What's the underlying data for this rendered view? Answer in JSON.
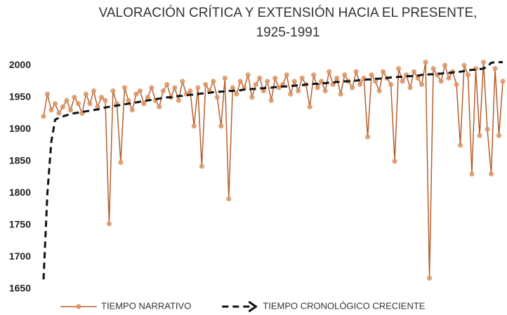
{
  "chart_data": {
    "type": "line",
    "title": [
      "VALORACIÓN CRÍTICA Y EXTENSIÓN HACIA EL PRESENTE,",
      "1925-1991"
    ],
    "categories": [
      null,
      null,
      null,
      null,
      null,
      null,
      null,
      null,
      null,
      null,
      null,
      null,
      null,
      null,
      null,
      null,
      null,
      null,
      null,
      null,
      null,
      null,
      null,
      null,
      null,
      null,
      null,
      null,
      null,
      null,
      null,
      null,
      null,
      null,
      null,
      null,
      null,
      null,
      null,
      null,
      null,
      null,
      null,
      null,
      null,
      null,
      null,
      null,
      null,
      null,
      null,
      null,
      null,
      null,
      null,
      null,
      null,
      null,
      null,
      null,
      null,
      null,
      null,
      null,
      null,
      null,
      null,
      null,
      null,
      null,
      null,
      null,
      null,
      null,
      null,
      null,
      null,
      null,
      null,
      null,
      null,
      null,
      null,
      null,
      null,
      null,
      null,
      null,
      null,
      null,
      null,
      null,
      null,
      null,
      null,
      null,
      null,
      null,
      null,
      null,
      null,
      null,
      null,
      null,
      null,
      null,
      null,
      null,
      null,
      null,
      null,
      null,
      null,
      null,
      null,
      null,
      null,
      null,
      null,
      null
    ],
    "series": [
      {
        "name": "TIEMPO NARRATIVO",
        "color": "#b5602e",
        "marker_color": "#dc9464",
        "style": "solid-marker",
        "values": [
          1920,
          1955,
          1930,
          1940,
          1925,
          1935,
          1945,
          1930,
          1950,
          1940,
          1925,
          1955,
          1940,
          1960,
          1935,
          1950,
          1945,
          1752,
          1960,
          1940,
          1848,
          1965,
          1945,
          1930,
          1955,
          1960,
          1940,
          1950,
          1965,
          1945,
          1935,
          1960,
          1970,
          1950,
          1965,
          1945,
          1975,
          1955,
          1960,
          1905,
          1965,
          1842,
          1970,
          1960,
          1975,
          1950,
          1905,
          1980,
          1791,
          1965,
          1955,
          1975,
          1965,
          1985,
          1950,
          1970,
          1980,
          1960,
          1975,
          1945,
          1980,
          1965,
          1970,
          1985,
          1955,
          1975,
          1960,
          1980,
          1970,
          1935,
          1985,
          1965,
          1975,
          1960,
          1990,
          1970,
          1980,
          1955,
          1985,
          1975,
          1965,
          1990,
          1970,
          1980,
          1888,
          1985,
          1975,
          1960,
          1990,
          1980,
          1970,
          1850,
          1995,
          1975,
          1985,
          1965,
          1990,
          1980,
          1970,
          2005,
          1667,
          1995,
          1985,
          1975,
          2000,
          1980,
          1990,
          1970,
          1875,
          2000,
          1985,
          1830,
          1995,
          1890,
          2005,
          1900,
          1830,
          1995,
          1890,
          1975
        ]
      },
      {
        "name": "TIEMPO CRONOLÓGICO CRECIENTE",
        "color": "#111111",
        "style": "dashed-arrow",
        "values": [
          1665,
          1800,
          1880,
          1915,
          1918,
          1920,
          1922,
          1924,
          1925,
          1926,
          1927,
          1928,
          1929,
          1930,
          1931,
          1932,
          1934,
          1935,
          1936,
          1937,
          1938,
          1939,
          1940,
          1941,
          1942,
          1943,
          1944,
          1945,
          1946,
          1947,
          1948,
          1949,
          1950,
          1950,
          1951,
          1952,
          1952,
          1953,
          1954,
          1954,
          1955,
          1956,
          1956,
          1957,
          1958,
          1958,
          1959,
          1959,
          1960,
          1960,
          1961,
          1961,
          1962,
          1962,
          1963,
          1963,
          1964,
          1964,
          1965,
          1965,
          1966,
          1966,
          1967,
          1967,
          1968,
          1968,
          1969,
          1969,
          1970,
          1970,
          1971,
          1971,
          1972,
          1972,
          1973,
          1973,
          1974,
          1974,
          1975,
          1975,
          1976,
          1976,
          1977,
          1977,
          1978,
          1978,
          1979,
          1979,
          1980,
          1980,
          1981,
          1981,
          1982,
          1982,
          1983,
          1983,
          1984,
          1984,
          1985,
          1985,
          1986,
          1986,
          1987,
          1987,
          1988,
          1988,
          1989,
          1989,
          1990,
          1991,
          1992,
          1993,
          1993,
          1994,
          1995,
          1998,
          2004,
          2005,
          2005,
          2005
        ]
      }
    ],
    "ylim": [
      1650,
      2010
    ],
    "yticks": [
      1650,
      1700,
      1750,
      1800,
      1850,
      1900,
      1950,
      2000
    ],
    "grid": false,
    "legend": "bottom"
  }
}
